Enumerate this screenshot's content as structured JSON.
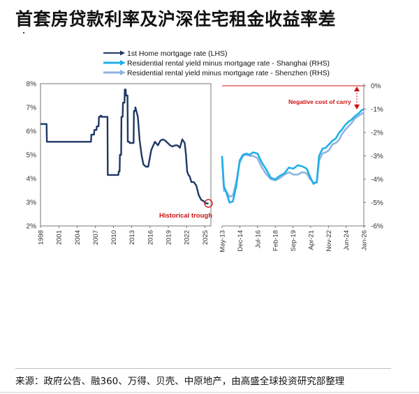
{
  "title": "首套房贷款利率及沪深住宅租金收益率差",
  "source": "来源：政府公告、融360、万得、贝壳、中原地产，由高盛全球投资研究部整理",
  "colors": {
    "mortgage": "#1f3864",
    "shanghai": "#1fb0e6",
    "shenzhen": "#8fb3e0",
    "annotation": "#cc1111"
  },
  "chart_data": [
    {
      "type": "line",
      "ylabel": "",
      "ylim": [
        2,
        8
      ],
      "y_ticks": [
        "8%",
        "7%",
        "6%",
        "5%",
        "4%",
        "3%",
        "2%"
      ],
      "x_ticks": [
        "1998",
        "2001",
        "2004",
        "2007",
        "2010",
        "2013",
        "2016",
        "2019",
        "2022",
        "2025"
      ],
      "xlim": [
        1998,
        2026
      ],
      "series": [
        {
          "name": "1st Home mortgage rate (LHS)",
          "axis": "LHS",
          "x": [
            1998,
            1999.0,
            1999.05,
            2000.5,
            2000.55,
            2006.3,
            2006.35,
            2006.8,
            2006.85,
            2007.2,
            2007.25,
            2007.55,
            2007.6,
            2007.8,
            2007.85,
            2008.0,
            2008.05,
            2009.0,
            2009.05,
            2010.8,
            2010.85,
            2011.0,
            2011.05,
            2011.25,
            2011.3,
            2011.5,
            2011.55,
            2011.8,
            2011.85,
            2012.0,
            2012.05,
            2012.3,
            2012.35,
            2012.6,
            2012.65,
            2013.3,
            2013.35,
            2013.55,
            2013.6,
            2014.0,
            2014.3,
            2014.6,
            2014.9,
            2015.3,
            2015.7,
            2016.2,
            2016.8,
            2017.3,
            2017.7,
            2018.1,
            2018.5,
            2018.9,
            2019.3,
            2019.7,
            2020.1,
            2020.5,
            2020.9,
            2021.3,
            2021.7,
            2021.9,
            2022.1,
            2022.3,
            2022.5,
            2022.8,
            2023.2,
            2023.6,
            2024.0,
            2024.4,
            2024.8,
            2025.2,
            2025.6
          ],
          "values": [
            6.3,
            6.3,
            5.55,
            5.55,
            5.55,
            5.55,
            5.85,
            5.85,
            6.05,
            6.05,
            6.2,
            6.2,
            6.6,
            6.6,
            6.65,
            6.65,
            6.6,
            6.6,
            4.15,
            4.15,
            4.3,
            4.3,
            5.0,
            5.0,
            6.6,
            6.6,
            7.2,
            7.2,
            7.75,
            7.75,
            7.5,
            7.5,
            5.55,
            5.55,
            5.5,
            5.5,
            6.85,
            6.85,
            7.0,
            6.6,
            5.6,
            5.0,
            4.6,
            4.5,
            4.5,
            5.2,
            5.55,
            5.4,
            5.6,
            5.65,
            5.6,
            5.5,
            5.4,
            5.35,
            5.4,
            5.4,
            5.3,
            5.65,
            5.5,
            5.0,
            4.3,
            4.15,
            4.1,
            3.85,
            3.85,
            3.7,
            3.3,
            3.1,
            3.05,
            2.95,
            2.95
          ]
        }
      ],
      "annotations": [
        {
          "text": "Historical trough",
          "x": 2025.6,
          "y": 2.95
        }
      ]
    },
    {
      "type": "line",
      "ylim": [
        -6,
        0
      ],
      "y_ticks": [
        "0%",
        "-1%",
        "-2%",
        "-3%",
        "-4%",
        "-5%",
        "-6%"
      ],
      "x_ticks": [
        "May-13",
        "Dec-14",
        "Jul-16",
        "Feb-18",
        "Sep-19",
        "Apr-21",
        "Nov-22",
        "Jun-24",
        "Jan-26"
      ],
      "xlim": [
        2013.33,
        2026.0
      ],
      "series": [
        {
          "name": "Residential rental yield minus mortgage rate - Shanghai (RHS)",
          "axis": "RHS",
          "x": [
            2013.33,
            2013.5,
            2013.7,
            2014.0,
            2014.3,
            2014.6,
            2014.9,
            2015.2,
            2015.5,
            2015.8,
            2016.1,
            2016.5,
            2016.9,
            2017.3,
            2017.7,
            2018.1,
            2018.5,
            2018.9,
            2019.3,
            2019.7,
            2020.1,
            2020.5,
            2020.9,
            2021.2,
            2021.5,
            2021.8,
            2022.0,
            2022.3,
            2022.6,
            2022.9,
            2023.2,
            2023.5,
            2023.8,
            2024.0,
            2024.3,
            2024.6,
            2024.9,
            2025.2,
            2025.5,
            2025.8,
            2026.0
          ],
          "values": [
            -3.0,
            -4.3,
            -4.55,
            -5.0,
            -4.95,
            -4.3,
            -3.2,
            -2.95,
            -2.9,
            -2.95,
            -2.85,
            -2.9,
            -3.3,
            -3.6,
            -3.95,
            -4.0,
            -3.85,
            -3.75,
            -3.5,
            -3.55,
            -3.4,
            -3.45,
            -3.55,
            -3.9,
            -4.2,
            -4.1,
            -3.0,
            -2.7,
            -2.65,
            -2.5,
            -2.35,
            -2.25,
            -2.0,
            -1.9,
            -1.7,
            -1.55,
            -1.45,
            -1.3,
            -1.2,
            -1.05,
            -1.0
          ]
        },
        {
          "name": "Residential rental yield minus mortgage rate - Shenzhen (RHS)",
          "axis": "RHS",
          "x": [
            2013.33,
            2013.5,
            2013.7,
            2014.0,
            2014.3,
            2014.6,
            2014.9,
            2015.2,
            2015.5,
            2015.8,
            2016.1,
            2016.5,
            2016.9,
            2017.3,
            2017.7,
            2018.1,
            2018.5,
            2018.9,
            2019.3,
            2019.7,
            2020.1,
            2020.5,
            2020.9,
            2021.2,
            2021.5,
            2021.8,
            2022.0,
            2022.3,
            2022.6,
            2022.9,
            2023.2,
            2023.5,
            2023.8,
            2024.0,
            2024.3,
            2024.6,
            2024.9,
            2025.2,
            2025.5,
            2025.8,
            2026.0
          ],
          "values": [
            -3.2,
            -4.5,
            -4.5,
            -4.75,
            -4.7,
            -4.1,
            -3.3,
            -3.0,
            -2.95,
            -3.0,
            -3.0,
            -3.1,
            -3.5,
            -3.8,
            -4.0,
            -4.05,
            -3.95,
            -3.8,
            -3.7,
            -3.8,
            -3.8,
            -3.7,
            -3.75,
            -4.0,
            -4.15,
            -4.15,
            -3.2,
            -2.9,
            -2.85,
            -2.75,
            -2.5,
            -2.45,
            -2.3,
            -2.1,
            -1.9,
            -1.75,
            -1.6,
            -1.4,
            -1.3,
            -1.2,
            -1.15
          ]
        }
      ],
      "annotations": [
        {
          "text": "Negative cost of carry"
        }
      ]
    }
  ]
}
